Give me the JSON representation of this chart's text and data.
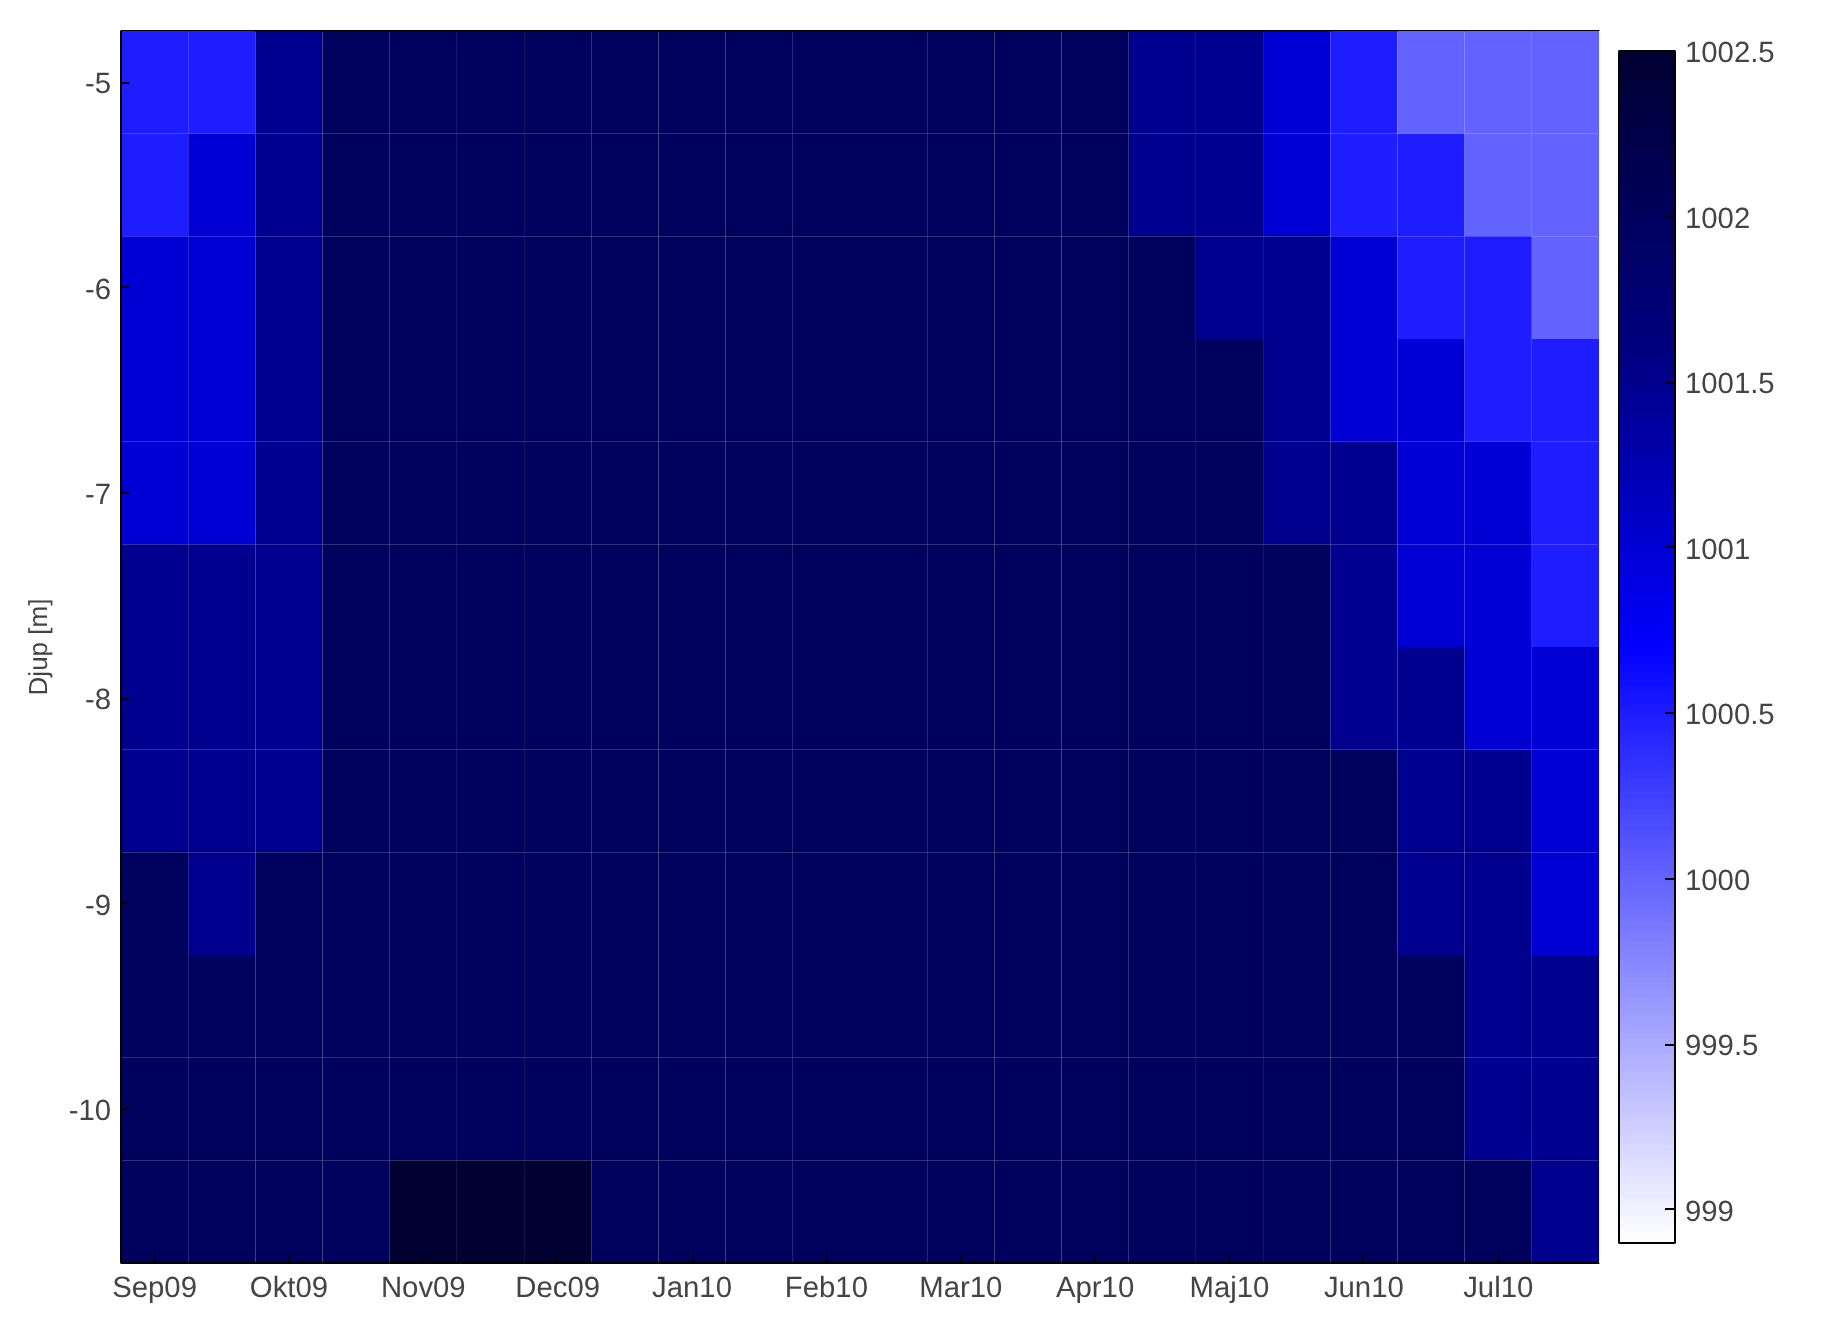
{
  "chart_data": {
    "type": "heatmap",
    "ylabel": "Djup [m]",
    "categories": [
      "Sep09",
      null,
      "Okt09",
      null,
      "Nov09",
      null,
      "Dec09",
      null,
      "Jan10",
      null,
      "Feb10",
      null,
      "Mar10",
      null,
      "Apr10",
      null,
      "Maj10",
      null,
      "Jun10",
      null,
      "Jul10",
      null
    ],
    "y_categories": [
      "-5",
      null,
      "-6",
      null,
      "-7",
      null,
      "-8",
      null,
      "-9",
      null,
      "-10",
      null
    ],
    "cells": [
      [
        1000.5,
        1000.5,
        1001.5,
        1002,
        1002,
        1002,
        1002,
        1002,
        1002,
        1002,
        1002,
        1002,
        1002,
        1002,
        1002,
        1001.5,
        1001.5,
        1001,
        1000.5,
        1000,
        1000,
        1000
      ],
      [
        1000.5,
        1001,
        1001.5,
        1002,
        1002,
        1002,
        1002,
        1002,
        1002,
        1002,
        1002,
        1002,
        1002,
        1002,
        1002,
        1001.5,
        1001.5,
        1001,
        1000.5,
        1000.5,
        1000,
        1000
      ],
      [
        1001,
        1001,
        1001.5,
        1002,
        1002,
        1002,
        1002,
        1002,
        1002,
        1002,
        1002,
        1002,
        1002,
        1002,
        1002,
        1002,
        1001.5,
        1001.5,
        1001,
        1000.5,
        1000.5,
        1000
      ],
      [
        1001,
        1001,
        1001.5,
        1002,
        1002,
        1002,
        1002,
        1002,
        1002,
        1002,
        1002,
        1002,
        1002,
        1002,
        1002,
        1002,
        1002,
        1001.5,
        1001,
        1001,
        1000.5,
        1000.5
      ],
      [
        1001,
        1001,
        1001.5,
        1002,
        1002,
        1002,
        1002,
        1002,
        1002,
        1002,
        1002,
        1002,
        1002,
        1002,
        1002,
        1002,
        1002,
        1001.5,
        1001.5,
        1001,
        1001,
        1000.5
      ],
      [
        1001.5,
        1001.5,
        1001.5,
        1002,
        1002,
        1002,
        1002,
        1002,
        1002,
        1002,
        1002,
        1002,
        1002,
        1002,
        1002,
        1002,
        1002,
        1002,
        1001.5,
        1001,
        1001,
        1000.5
      ],
      [
        1001.5,
        1001.5,
        1001.5,
        1002,
        1002,
        1002,
        1002,
        1002,
        1002,
        1002,
        1002,
        1002,
        1002,
        1002,
        1002,
        1002,
        1002,
        1002,
        1001.5,
        1001.5,
        1001,
        1001
      ],
      [
        1001.5,
        1001.5,
        1001.5,
        1002,
        1002,
        1002,
        1002,
        1002,
        1002,
        1002,
        1002,
        1002,
        1002,
        1002,
        1002,
        1002,
        1002,
        1002,
        1002,
        1001.5,
        1001.5,
        1001
      ],
      [
        1002,
        1001.5,
        1002,
        1002,
        1002,
        1002,
        1002,
        1002,
        1002,
        1002,
        1002,
        1002,
        1002,
        1002,
        1002,
        1002,
        1002,
        1002,
        1002,
        1001.5,
        1001.5,
        1001
      ],
      [
        1002,
        1002,
        1002,
        1002,
        1002,
        1002,
        1002,
        1002,
        1002,
        1002,
        1002,
        1002,
        1002,
        1002,
        1002,
        1002,
        1002,
        1002,
        1002,
        1002,
        1001.5,
        1001.5
      ],
      [
        1002,
        1002,
        1002,
        1002,
        1002,
        1002,
        1002,
        1002,
        1002,
        1002,
        1002,
        1002,
        1002,
        1002,
        1002,
        1002,
        1002,
        1002,
        1002,
        1002,
        1001.5,
        1001.5
      ],
      [
        1002,
        1002,
        1002,
        1002,
        1002.5,
        1002.5,
        1002.5,
        1002,
        1002,
        1002,
        1002,
        1002,
        1002,
        1002,
        1002,
        1002,
        1002,
        1002,
        1002,
        1002,
        1002,
        1001.5
      ]
    ],
    "clim": [
      998.9,
      1002.5
    ],
    "cticks": [
      999,
      999.5,
      1000,
      1000.5,
      1001,
      1001.5,
      1002,
      1002.5
    ]
  }
}
